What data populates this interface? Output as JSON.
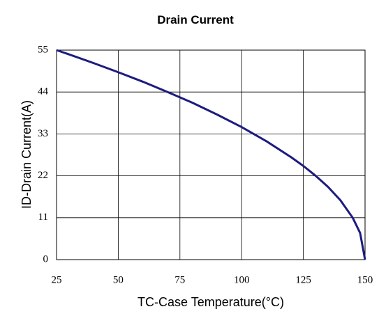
{
  "chart_data": {
    "type": "line",
    "title": "Drain Current",
    "x_label": "TC-Case Temperature(°C)",
    "y_label": "ID-Drain Current(A)",
    "x": [
      25,
      30,
      40,
      50,
      60,
      70,
      80,
      90,
      100,
      110,
      120,
      125,
      130,
      135,
      140,
      145,
      148,
      150
    ],
    "series": [
      {
        "name": "ID",
        "color": "#1c1c80",
        "values": [
          55,
          53.9,
          51.6,
          49.2,
          46.7,
          44,
          41.2,
          38.1,
          34.8,
          31.1,
          26.9,
          24.6,
          22,
          19.1,
          15.6,
          11,
          7,
          0
        ]
      }
    ],
    "xlim": [
      25,
      150
    ],
    "xticks": [
      25,
      50,
      75,
      100,
      125,
      150
    ],
    "ylim": [
      0,
      55
    ],
    "yticks": [
      0,
      11,
      22,
      33,
      44,
      55
    ],
    "grid": true
  }
}
